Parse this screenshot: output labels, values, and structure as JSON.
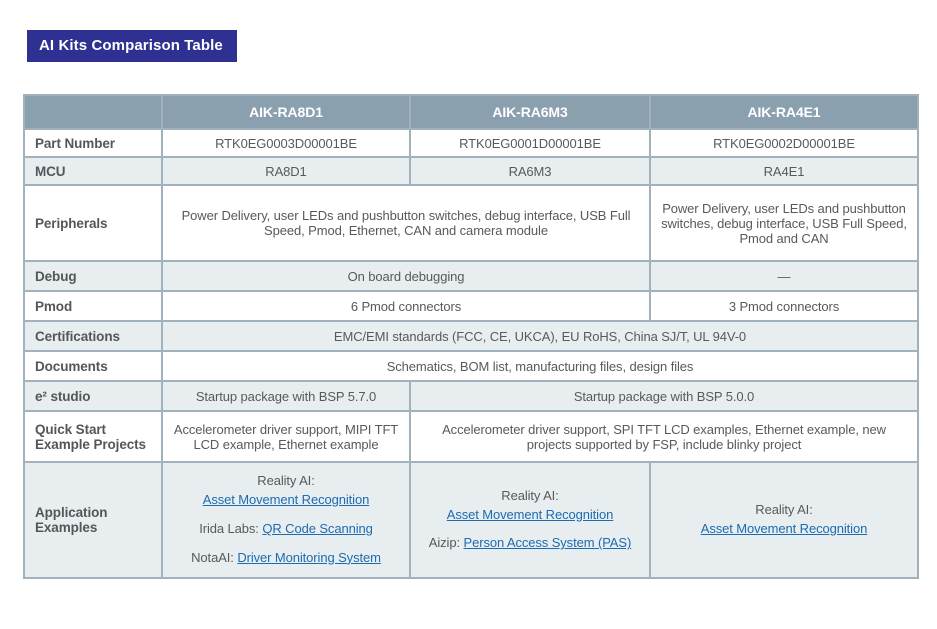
{
  "title": "AI Kits Comparison Table",
  "colors": {
    "title_bg": "#2e3192",
    "header_bg": "#8ba0ae",
    "row_alt_bg": "#e8edf0",
    "border": "#a2b2bc",
    "text": "#58595b",
    "link": "#1b6cb0"
  },
  "table": {
    "header": {
      "col1": "AIK-RA8D1",
      "col2": "AIK-RA6M3",
      "col3": "AIK-RA4E1"
    },
    "rows": {
      "part_number": {
        "label": "Part Number",
        "c1": "RTK0EG0003D00001BE",
        "c2": "RTK0EG0001D00001BE",
        "c3": "RTK0EG0002D00001BE"
      },
      "mcu": {
        "label": "MCU",
        "c1": "RA8D1",
        "c2": "RA6M3",
        "c3": "RA4E1"
      },
      "peripherals": {
        "label": "Peripherals",
        "c12": "Power Delivery, user LEDs and pushbutton switches, debug interface, USB Full Speed, Pmod, Ethernet, CAN and camera module",
        "c3": "Power Delivery, user LEDs and pushbutton switches, debug interface, USB Full Speed, Pmod and CAN"
      },
      "debug": {
        "label": "Debug",
        "c12": "On board debugging",
        "c3": "—"
      },
      "pmod": {
        "label": "Pmod",
        "c12": "6 Pmod connectors",
        "c3": "3 Pmod connectors"
      },
      "certifications": {
        "label": "Certifications",
        "c123": "EMC/EMI standards (FCC, CE, UKCA), EU RoHS, China SJ/T, UL 94V-0"
      },
      "documents": {
        "label": "Documents",
        "c123": "Schematics, BOM list, manufacturing files, design files"
      },
      "e2_studio": {
        "label": "e² studio",
        "c1": "Startup package with BSP 5.7.0",
        "c23": "Startup package with BSP 5.0.0"
      },
      "quick_start": {
        "label": "Quick Start Example Projects",
        "c1": "Accelerometer driver support, MIPI TFT LCD example, Ethernet example",
        "c23": "Accelerometer driver support, SPI TFT LCD examples, Ethernet example, new projects supported by FSP, include blinky project"
      },
      "application_examples": {
        "label": "Application Examples",
        "c1": {
          "e1_prefix": "Reality AI:",
          "e1_link": "Asset Movement Recognition",
          "e2_prefix": "Irida Labs:",
          "e2_link": "QR Code Scanning",
          "e3_prefix": "NotaAI:",
          "e3_link": "Driver Monitoring System"
        },
        "c2": {
          "e1_prefix": "Reality AI:",
          "e1_link": "Asset Movement Recognition",
          "e2_prefix": "Aizip:",
          "e2_link": "Person Access System (PAS)"
        },
        "c3": {
          "e1_prefix": "Reality AI:",
          "e1_link": "Asset Movement Recognition"
        }
      }
    }
  }
}
